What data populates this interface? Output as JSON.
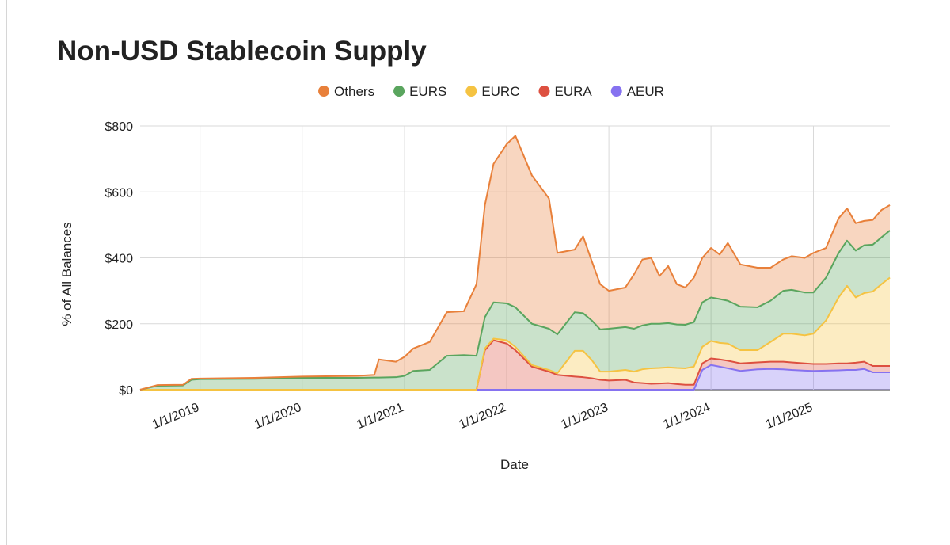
{
  "chart_data": {
    "type": "stacked_area",
    "title": "Non-USD Stablecoin Supply",
    "x_label": "Date",
    "y_label": "% of All Balances",
    "x": [
      "2018-06-01",
      "2018-08-01",
      "2018-11-01",
      "2018-12-01",
      "2019-01-01",
      "2019-07-15",
      "2020-01-01",
      "2020-07-15",
      "2020-09-15",
      "2020-10-01",
      "2020-12-01",
      "2021-01-01",
      "2021-02-01",
      "2021-04-01",
      "2021-06-01",
      "2021-08-01",
      "2021-09-15",
      "2021-10-15",
      "2021-11-15",
      "2022-01-01",
      "2022-02-01",
      "2022-04-01",
      "2022-06-01",
      "2022-07-01",
      "2022-09-01",
      "2022-10-01",
      "2022-11-01",
      "2022-12-01",
      "2023-01-01",
      "2023-03-01",
      "2023-04-01",
      "2023-05-01",
      "2023-06-01",
      "2023-07-01",
      "2023-08-01",
      "2023-09-01",
      "2023-10-01",
      "2023-11-01",
      "2023-12-01",
      "2024-01-01",
      "2024-02-01",
      "2024-03-01",
      "2024-04-15",
      "2024-06-15",
      "2024-08-01",
      "2024-09-15",
      "2024-10-15",
      "2024-12-01",
      "2025-01-01",
      "2025-02-15",
      "2025-04-01",
      "2025-05-01",
      "2025-06-01",
      "2025-07-01",
      "2025-08-01",
      "2025-09-01",
      "2025-10-01"
    ],
    "series": [
      {
        "name": "AEUR",
        "color": "#8672f0",
        "values": [
          0,
          0,
          0,
          0,
          0,
          0,
          0,
          0,
          0,
          0,
          0,
          0,
          0,
          0,
          0,
          0,
          0,
          0,
          0,
          0,
          0,
          0,
          0,
          0,
          0,
          0,
          0,
          0,
          0,
          0,
          0,
          0,
          0,
          0,
          0,
          0,
          0,
          0,
          60,
          75,
          70,
          65,
          57,
          62,
          63,
          62,
          60,
          58,
          57,
          58,
          59,
          60,
          60,
          63,
          53,
          53,
          53
        ]
      },
      {
        "name": "EURA",
        "color": "#dd5040",
        "values": [
          0,
          0,
          0,
          0,
          0,
          0,
          0,
          0,
          0,
          0,
          0,
          0,
          0,
          0,
          0,
          0,
          0,
          120,
          150,
          140,
          120,
          70,
          55,
          45,
          40,
          38,
          35,
          30,
          28,
          30,
          22,
          20,
          18,
          19,
          20,
          17,
          15,
          15,
          20,
          20,
          22,
          23,
          23,
          21,
          22,
          23,
          23,
          22,
          21,
          20,
          21,
          20,
          22,
          22,
          19,
          19,
          19
        ]
      },
      {
        "name": "EURC",
        "color": "#f5c342",
        "values": [
          0,
          0,
          0,
          0,
          0,
          0,
          0,
          0,
          0,
          0,
          0,
          0,
          0,
          0,
          0,
          0,
          0,
          5,
          5,
          10,
          10,
          5,
          5,
          5,
          78,
          80,
          55,
          25,
          27,
          30,
          33,
          42,
          47,
          47,
          48,
          49,
          50,
          55,
          50,
          53,
          50,
          52,
          40,
          37,
          60,
          85,
          87,
          85,
          92,
          132,
          200,
          235,
          198,
          208,
          226,
          248,
          268
        ]
      },
      {
        "name": "EURS",
        "color": "#5aa55e",
        "values": [
          0,
          12,
          13,
          30,
          32,
          33,
          36,
          36,
          37,
          37,
          38,
          42,
          57,
          60,
          103,
          105,
          103,
          95,
          110,
          112,
          120,
          125,
          125,
          118,
          117,
          114,
          120,
          128,
          130,
          130,
          130,
          133,
          135,
          134,
          134,
          132,
          132,
          135,
          135,
          132,
          133,
          130,
          132,
          130,
          125,
          130,
          133,
          130,
          125,
          130,
          135,
          137,
          142,
          145,
          142,
          142,
          143
        ]
      },
      {
        "name": "Others",
        "color": "#e8803a",
        "values": [
          0,
          2,
          2,
          3,
          2,
          3,
          4,
          6,
          8,
          55,
          47,
          58,
          68,
          85,
          132,
          133,
          217,
          340,
          420,
          483,
          520,
          450,
          395,
          247,
          190,
          233,
          180,
          137,
          115,
          120,
          165,
          200,
          200,
          145,
          173,
          122,
          113,
          135,
          135,
          150,
          135,
          175,
          128,
          120,
          100,
          95,
          102,
          105,
          120,
          90,
          105,
          98,
          83,
          74,
          75,
          83,
          77
        ]
      }
    ],
    "legend_order": [
      "Others",
      "EURS",
      "EURC",
      "EURA",
      "AEUR"
    ],
    "xlim": [
      "2018-06-01",
      "2025-10-01"
    ],
    "xticks": [
      {
        "value": "2019-01-01",
        "label": "1/1/2019"
      },
      {
        "value": "2020-01-01",
        "label": "1/1/2020"
      },
      {
        "value": "2021-01-01",
        "label": "1/1/2021"
      },
      {
        "value": "2022-01-01",
        "label": "1/1/2022"
      },
      {
        "value": "2023-01-01",
        "label": "1/1/2023"
      },
      {
        "value": "2024-01-01",
        "label": "1/1/2024"
      },
      {
        "value": "2025-01-01",
        "label": "1/1/2025"
      }
    ],
    "ylim": [
      0,
      800
    ],
    "yticks": [
      {
        "value": 0,
        "label": "$0"
      },
      {
        "value": 200,
        "label": "$200"
      },
      {
        "value": 400,
        "label": "$400"
      },
      {
        "value": 600,
        "label": "$600"
      },
      {
        "value": 800,
        "label": "$800"
      }
    ],
    "grid": true,
    "legend_position": "top"
  }
}
